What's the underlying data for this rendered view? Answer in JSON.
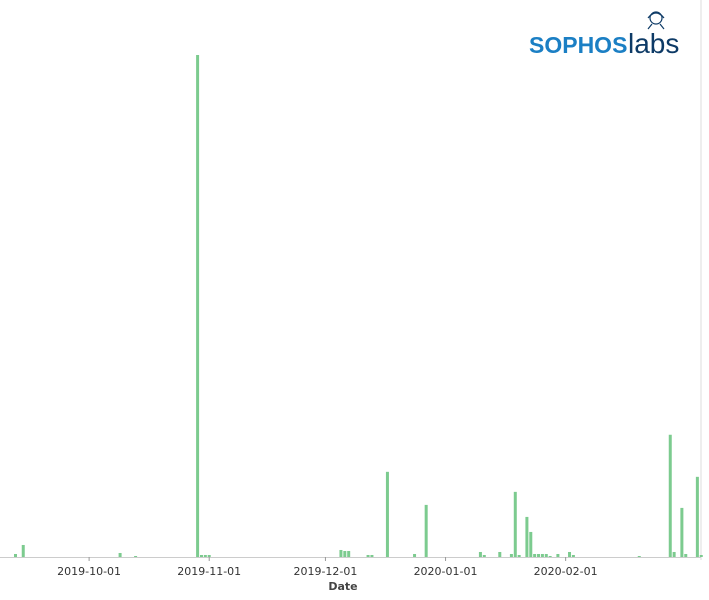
{
  "logo": {
    "brand": "SOPHOS",
    "sub": "labs"
  },
  "chart_data": {
    "type": "bar",
    "x_label": "Date",
    "color": "#7ccb8f",
    "xlim": [
      "2019-09-08",
      "2020-03-09"
    ],
    "xticks": [
      "2019-10-01",
      "2019-11-01",
      "2019-12-01",
      "2020-01-01",
      "2020-02-01"
    ],
    "ylim": [
      0,
      500
    ],
    "x": [
      "2019-09-12",
      "2019-09-14",
      "2019-10-09",
      "2019-10-13",
      "2019-10-29",
      "2019-10-30",
      "2019-10-31",
      "2019-11-01",
      "2019-12-05",
      "2019-12-06",
      "2019-12-07",
      "2019-12-12",
      "2019-12-13",
      "2019-12-17",
      "2019-12-24",
      "2019-12-27",
      "2020-01-10",
      "2020-01-11",
      "2020-01-15",
      "2020-01-18",
      "2020-01-19",
      "2020-01-20",
      "2020-01-22",
      "2020-01-23",
      "2020-01-24",
      "2020-01-25",
      "2020-01-26",
      "2020-01-27",
      "2020-01-28",
      "2020-01-30",
      "2020-02-02",
      "2020-02-03",
      "2020-02-20",
      "2020-02-28",
      "2020-02-29",
      "2020-03-02",
      "2020-03-03",
      "2020-03-06",
      "2020-03-07"
    ],
    "values": [
      3,
      12,
      4,
      1,
      501,
      2,
      2,
      2,
      7,
      6,
      6,
      2,
      2,
      85,
      3,
      52,
      5,
      2,
      5,
      3,
      65,
      2,
      40,
      25,
      3,
      3,
      3,
      3,
      1,
      3,
      5,
      2,
      1,
      122,
      5,
      49,
      3,
      80,
      2
    ]
  }
}
